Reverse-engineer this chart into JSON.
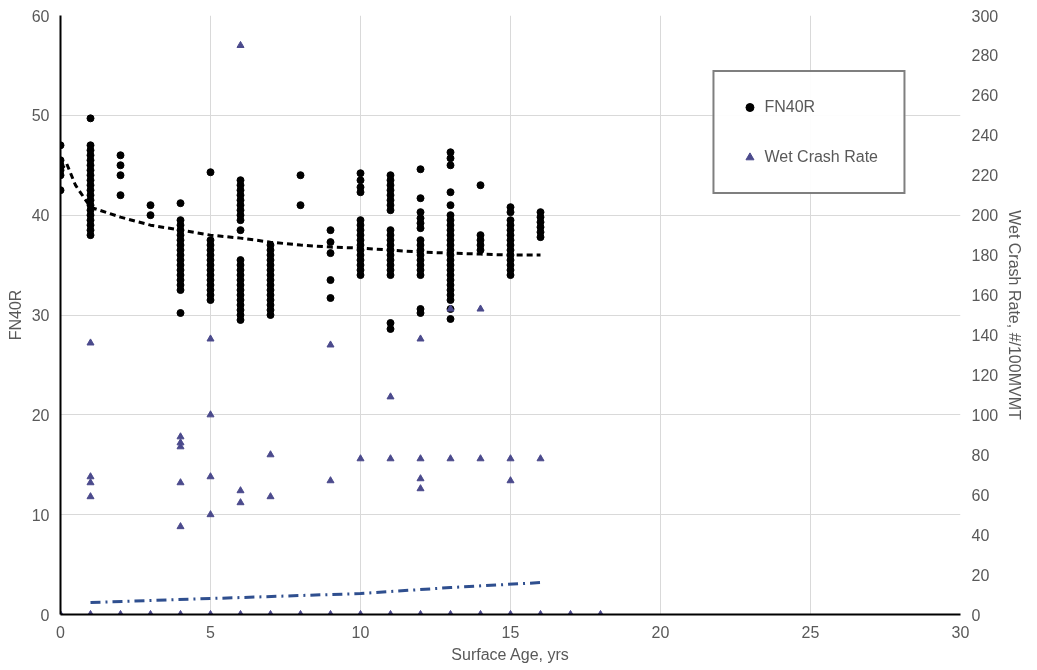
{
  "chart_data": {
    "type": "scatter",
    "xlabel": "Surface Age, yrs",
    "ylabel": "FN40R",
    "y2label": "Wet Crash Rate, #/100MVMT",
    "xlim": [
      0,
      30
    ],
    "xticks": [
      0,
      5,
      10,
      15,
      20,
      25,
      30
    ],
    "ylim": [
      0,
      60
    ],
    "yticks": [
      0,
      10,
      20,
      30,
      40,
      50,
      60
    ],
    "y2lim": [
      0,
      300
    ],
    "y2ticks": [
      0,
      20,
      40,
      60,
      80,
      100,
      120,
      140,
      160,
      180,
      200,
      220,
      240,
      260,
      280,
      300
    ],
    "grid": true,
    "legend": "top right",
    "series": [
      {
        "name": "FN40R",
        "marker": "circle",
        "color": "#000000",
        "x": [
          0,
          0,
          0,
          0,
          0,
          0,
          1,
          1,
          1,
          1,
          1,
          1,
          1,
          1,
          1,
          1,
          1,
          1,
          1,
          1,
          1,
          1,
          1,
          1,
          1,
          1,
          2,
          2,
          2,
          2,
          3,
          3,
          4,
          4,
          4,
          4,
          4,
          4,
          4,
          4,
          4,
          4,
          4,
          4,
          4,
          4,
          4,
          4,
          4,
          5,
          5,
          5,
          5,
          5,
          5,
          5,
          5,
          5,
          5,
          5,
          5,
          5,
          5,
          6,
          6,
          6,
          6,
          6,
          6,
          6,
          6,
          6,
          6,
          6,
          6,
          6,
          6,
          6,
          6,
          6,
          6,
          6,
          6,
          6,
          6,
          6,
          7,
          7,
          7,
          7,
          7,
          7,
          7,
          7,
          7,
          7,
          7,
          7,
          7,
          7,
          7,
          8,
          8,
          9,
          9,
          9,
          9,
          9,
          10,
          10,
          10,
          10,
          10,
          10,
          10,
          10,
          10,
          10,
          10,
          10,
          10,
          10,
          10,
          10,
          11,
          11,
          11,
          11,
          11,
          11,
          11,
          11,
          11,
          11,
          11,
          11,
          11,
          11,
          11,
          11,
          11,
          11,
          11,
          11,
          12,
          12,
          12,
          12,
          12,
          12,
          12,
          12,
          12,
          12,
          12,
          12,
          12,
          12,
          12,
          12,
          13,
          13,
          13,
          13,
          13,
          13,
          13,
          13,
          13,
          13,
          13,
          13,
          13,
          13,
          13,
          13,
          13,
          13,
          13,
          13,
          13,
          13,
          13,
          13,
          13,
          14,
          14,
          14,
          14,
          14,
          15,
          15,
          15,
          15,
          15,
          15,
          15,
          15,
          15,
          15,
          15,
          15,
          15,
          15,
          16,
          16,
          16,
          16,
          16,
          16
        ],
        "values": [
          47,
          45.5,
          45,
          44.5,
          44,
          42.5,
          49.7,
          47,
          46.5,
          46,
          45.5,
          45,
          44.5,
          44,
          43.5,
          43,
          42.5,
          42,
          41.5,
          41,
          40.5,
          40,
          39.5,
          39,
          38.5,
          38,
          46,
          45,
          44,
          42,
          41,
          40,
          41.2,
          39.5,
          39,
          38.5,
          38,
          37.5,
          37,
          36.5,
          36,
          35.5,
          35,
          34.5,
          34,
          33.5,
          33,
          32.5,
          30.2,
          44.3,
          37.5,
          37,
          36.5,
          36,
          35.5,
          35,
          34.5,
          34,
          33.5,
          33,
          32.5,
          32,
          31.5,
          43.5,
          43,
          42.5,
          42,
          41.5,
          41,
          40.5,
          40,
          39.5,
          38.5,
          35.5,
          35,
          34.5,
          34,
          33.5,
          33,
          32.5,
          32,
          31.5,
          31,
          30.5,
          30,
          29.5,
          37,
          36.5,
          36,
          35.5,
          35,
          34.5,
          34,
          33.5,
          33,
          32.5,
          32,
          31.5,
          31,
          30.5,
          30,
          44,
          41,
          38.5,
          37.3,
          36.2,
          33.5,
          31.7,
          44.2,
          43.5,
          42.8,
          42.3,
          39.5,
          39,
          38.5,
          38,
          37.5,
          37,
          36.5,
          36,
          35.5,
          35,
          34.5,
          34,
          44,
          43.5,
          43,
          42.5,
          42,
          41.5,
          41,
          40.5,
          38.5,
          38,
          37.5,
          37,
          36.5,
          36,
          35.5,
          35,
          34.5,
          34,
          29.2,
          28.6,
          44.6,
          41.7,
          40.3,
          39.7,
          39.2,
          38.7,
          37.5,
          37,
          36.5,
          36,
          35.5,
          35,
          34.5,
          34,
          30.6,
          30.2,
          46.3,
          45.7,
          45,
          42.3,
          41,
          40,
          39.5,
          39,
          38.5,
          38,
          37.5,
          37,
          36.5,
          36,
          35.5,
          35,
          34.5,
          34,
          33.5,
          33,
          32.5,
          32,
          31.5,
          30.6,
          29.6,
          43,
          38,
          37.5,
          37,
          36.5,
          40.8,
          40.3,
          39.5,
          39,
          38.5,
          38,
          37.5,
          37,
          36.5,
          36,
          35.5,
          35,
          34.5,
          34,
          40.3,
          39.8,
          39.3,
          38.8,
          38.3,
          37.8
        ]
      },
      {
        "name": "Wet Crash Rate",
        "marker": "triangle",
        "color": "#4b4a8c",
        "axis": "y2",
        "x": [
          0,
          1,
          1,
          1,
          1,
          1,
          2,
          3,
          4,
          4,
          4,
          4,
          4,
          4,
          5,
          5,
          5,
          5,
          5,
          6,
          6,
          6,
          6,
          7,
          7,
          7,
          8,
          9,
          9,
          9,
          10,
          10,
          11,
          11,
          11,
          12,
          12,
          12,
          12,
          12,
          13,
          13,
          13,
          14,
          14,
          14,
          15,
          15,
          15,
          16,
          16,
          17,
          18
        ],
        "values": [
          0,
          136,
          69,
          66,
          59,
          0,
          0,
          0,
          89,
          86,
          84,
          66,
          44,
          0,
          138,
          100,
          69,
          50,
          0,
          285,
          62,
          56,
          0,
          80,
          59,
          0,
          0,
          135,
          67,
          0,
          78,
          0,
          109,
          78,
          0,
          138,
          78,
          68,
          63,
          0,
          153,
          78,
          0,
          153,
          78,
          0,
          78,
          67,
          0,
          78,
          0,
          0,
          0
        ]
      },
      {
        "type": "line",
        "marker": "none",
        "line_style": "dashed",
        "color": "#000000",
        "x": [
          0,
          0.2,
          0.5,
          1,
          2,
          3,
          4,
          5,
          6,
          7,
          8,
          9,
          10,
          11,
          12,
          13,
          14,
          15,
          16
        ],
        "values": [
          44.5,
          45.2,
          43,
          40.8,
          39.8,
          39,
          38.5,
          38,
          37.7,
          37.3,
          37,
          36.8,
          36.7,
          36.5,
          36.3,
          36.2,
          36.1,
          36,
          36
        ]
      },
      {
        "type": "line",
        "marker": "none",
        "line_style": "dashdot",
        "color": "#2f4f8f",
        "axis": "y2",
        "x": [
          1,
          5,
          10,
          13,
          16
        ],
        "values": [
          6,
          8,
          10.5,
          13.5,
          16
        ]
      }
    ]
  }
}
